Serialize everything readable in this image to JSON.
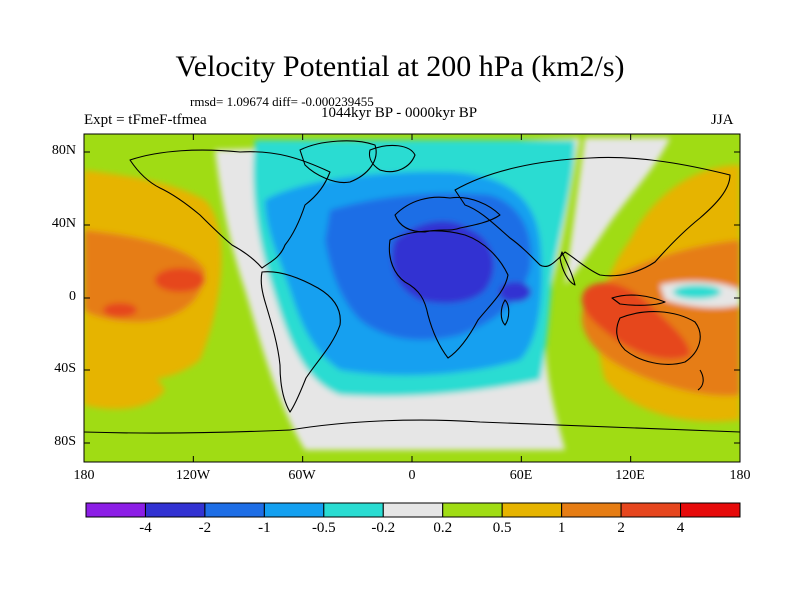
{
  "title": "Velocity Potential at 200 hPa (km2/s)",
  "stats_line": "rmsd= 1.09674  diff= -0.000239455",
  "experiment": "Expt = tFmeF-tfmea",
  "period": "1044kyr BP - 0000kyr BP",
  "season": "JJA",
  "lat_labels": [
    "80N",
    "40N",
    "0",
    "40S",
    "80S"
  ],
  "lon_labels": [
    "180",
    "120W",
    "60W",
    "0",
    "60E",
    "120E",
    "180"
  ],
  "colorbar": {
    "labels": [
      "-4",
      "-2",
      "-1",
      "-0.5",
      "-0.2",
      "0.2",
      "0.5",
      "1",
      "2",
      "4"
    ],
    "colors": [
      "#8c1ee6",
      "#3232d2",
      "#1e6ee6",
      "#14a0f0",
      "#2adcd2",
      "#e6e6e6",
      "#a0dc14",
      "#e6b400",
      "#e67d14",
      "#e6461e",
      "#e60a0a"
    ]
  }
}
